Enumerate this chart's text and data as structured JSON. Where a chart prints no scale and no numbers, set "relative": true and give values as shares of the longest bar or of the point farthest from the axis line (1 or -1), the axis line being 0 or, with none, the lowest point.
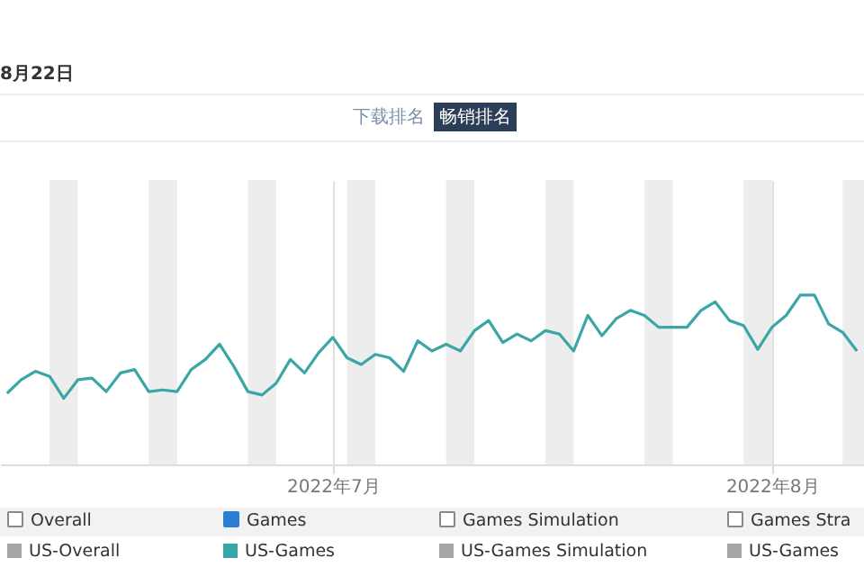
{
  "chart_data": {
    "type": "line",
    "relative": true,
    "annotations": [
      "8月22日",
      "下载排名",
      "畅销排名",
      "Overall",
      "Games",
      "Games Simulation",
      "Games Stra"
    ],
    "x": [
      "2022-06-08",
      "2022-06-09",
      "2022-06-10",
      "2022-06-11",
      "2022-06-12",
      "2022-06-13",
      "2022-06-14",
      "2022-06-15",
      "2022-06-16",
      "2022-06-17",
      "2022-06-18",
      "2022-06-19",
      "2022-06-20",
      "2022-06-21",
      "2022-06-22",
      "2022-06-23",
      "2022-06-24",
      "2022-06-25",
      "2022-06-26",
      "2022-06-27",
      "2022-06-28",
      "2022-06-29",
      "2022-06-30",
      "2022-07-01",
      "2022-07-02",
      "2022-07-03",
      "2022-07-04",
      "2022-07-05",
      "2022-07-06",
      "2022-07-07",
      "2022-07-08",
      "2022-07-09",
      "2022-07-10",
      "2022-07-11",
      "2022-07-12",
      "2022-07-13",
      "2022-07-14",
      "2022-07-15",
      "2022-07-16",
      "2022-07-17",
      "2022-07-18",
      "2022-07-19",
      "2022-07-20",
      "2022-07-21",
      "2022-07-22",
      "2022-07-23",
      "2022-07-24",
      "2022-07-25",
      "2022-07-26",
      "2022-07-27",
      "2022-07-28",
      "2022-07-29",
      "2022-07-30",
      "2022-07-31",
      "2022-08-01",
      "2022-08-02",
      "2022-08-03",
      "2022-08-04",
      "2022-08-05",
      "2022-08-06",
      "2022-08-07"
    ],
    "series": [
      {
        "name": "US-Overall",
        "color": "#a6a6a6",
        "values": [
          null,
          null,
          null,
          null,
          null,
          null,
          null,
          null,
          null,
          null,
          null,
          null,
          null,
          null,
          null,
          null,
          null,
          null,
          null,
          null,
          null,
          null,
          null,
          null,
          null,
          null,
          null,
          null,
          null,
          null,
          null,
          null,
          null,
          null,
          null,
          null,
          null,
          null,
          null,
          null,
          null,
          null,
          null,
          null,
          null,
          null,
          null,
          null,
          null,
          null,
          null,
          null,
          null,
          null,
          null,
          null,
          null,
          null,
          null,
          null,
          null
        ]
      },
      {
        "name": "US-Games",
        "color": "#3aa6a6",
        "values": [
          0.42,
          0.5,
          0.55,
          0.52,
          0.39,
          0.5,
          0.51,
          0.43,
          0.54,
          0.56,
          0.43,
          0.44,
          0.43,
          0.56,
          0.62,
          0.71,
          0.58,
          0.43,
          0.41,
          0.48,
          0.62,
          0.54,
          0.66,
          0.75,
          0.63,
          0.59,
          0.65,
          0.63,
          0.55,
          0.73,
          0.67,
          0.71,
          0.67,
          0.79,
          0.85,
          0.72,
          0.77,
          0.73,
          0.79,
          0.77,
          0.67,
          0.88,
          0.76,
          0.86,
          0.91,
          0.88,
          0.81,
          0.81,
          0.81,
          0.91,
          0.96,
          0.85,
          0.82,
          0.68,
          0.81,
          0.88,
          1.0,
          1.0,
          0.83,
          0.78,
          0.67
        ]
      },
      {
        "name": "US-Games Simulation",
        "color": "#a6a6a6",
        "values": [
          null,
          null,
          null,
          null,
          null,
          null,
          null,
          null,
          null,
          null,
          null,
          null,
          null,
          null,
          null,
          null,
          null,
          null,
          null,
          null,
          null,
          null,
          null,
          null,
          null,
          null,
          null,
          null,
          null,
          null,
          null,
          null,
          null,
          null,
          null,
          null,
          null,
          null,
          null,
          null,
          null,
          null,
          null,
          null,
          null,
          null,
          null,
          null,
          null,
          null,
          null,
          null,
          null,
          null,
          null,
          null,
          null,
          null,
          null,
          null,
          null
        ]
      },
      {
        "name": "US-Games",
        "color": "#a6a6a6",
        "values": [
          null,
          null,
          null,
          null,
          null,
          null,
          null,
          null,
          null,
          null,
          null,
          null,
          null,
          null,
          null,
          null,
          null,
          null,
          null,
          null,
          null,
          null,
          null,
          null,
          null,
          null,
          null,
          null,
          null,
          null,
          null,
          null,
          null,
          null,
          null,
          null,
          null,
          null,
          null,
          null,
          null,
          null,
          null,
          null,
          null,
          null,
          null,
          null,
          null,
          null,
          null,
          null,
          null,
          null,
          null,
          null,
          null,
          null,
          null,
          null,
          null
        ]
      }
    ],
    "xlim": [
      "2022-06-07T12:00",
      "2022-08-07T12:00"
    ],
    "xticks": [
      {
        "value": "2022-07-01",
        "label": "2022年7月"
      },
      {
        "value": "2022-08-01",
        "label": "2022年8月"
      }
    ],
    "bands": [
      {
        "axis": "x",
        "from": "2022-06-11",
        "to": "2022-06-13",
        "color": "#ededed"
      },
      {
        "axis": "x",
        "from": "2022-06-18",
        "to": "2022-06-20",
        "color": "#ededed"
      },
      {
        "axis": "x",
        "from": "2022-06-25",
        "to": "2022-06-27",
        "color": "#ededed"
      },
      {
        "axis": "x",
        "from": "2022-07-02",
        "to": "2022-07-04",
        "color": "#ededed"
      },
      {
        "axis": "x",
        "from": "2022-07-09",
        "to": "2022-07-11",
        "color": "#ededed"
      },
      {
        "axis": "x",
        "from": "2022-07-16",
        "to": "2022-07-18",
        "color": "#ededed"
      },
      {
        "axis": "x",
        "from": "2022-07-23",
        "to": "2022-07-25",
        "color": "#ededed"
      },
      {
        "axis": "x",
        "from": "2022-07-30",
        "to": "2022-08-01",
        "color": "#ededed"
      },
      {
        "axis": "x",
        "from": "2022-08-06",
        "to": "2022-08-07T12:00",
        "color": "#ededed"
      }
    ],
    "grid": "x",
    "legend": "bottom"
  }
}
